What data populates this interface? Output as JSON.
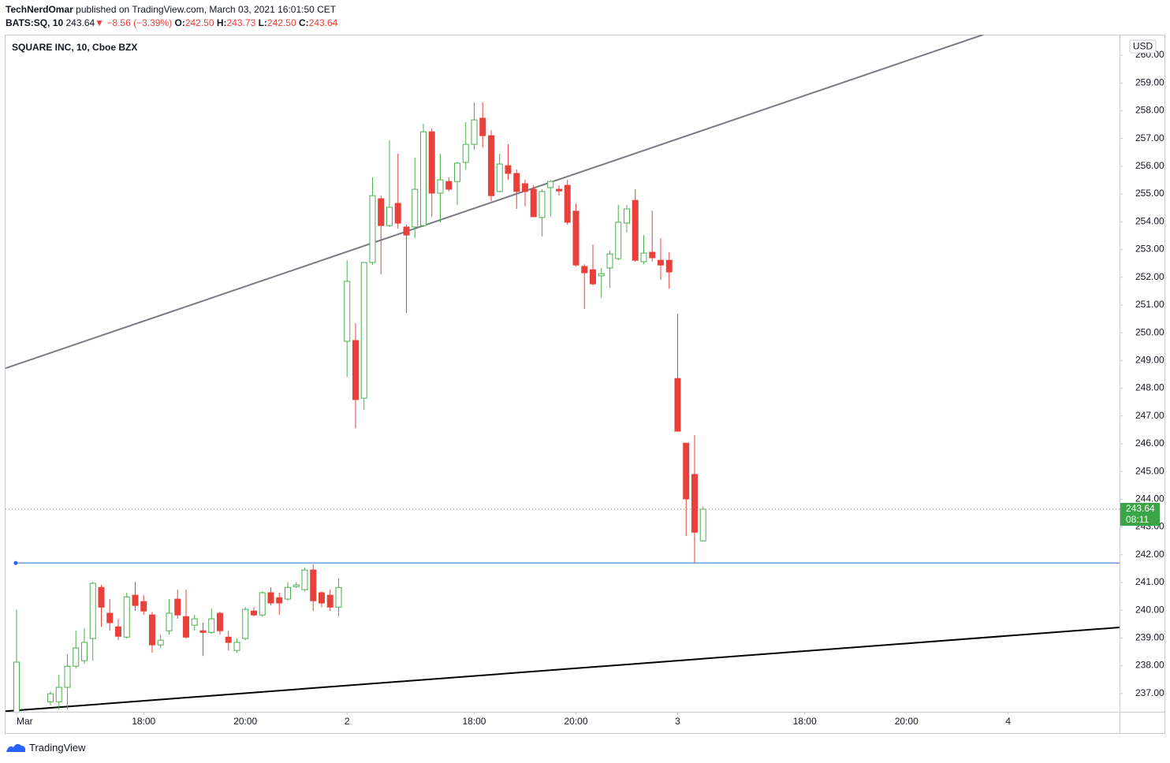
{
  "header": {
    "author": "TechNerdOmar",
    "published": "published on TradingView.com, March 03, 2021 16:01:50 CET",
    "symbol": "BATS:SQ, 10",
    "price": "243.64",
    "arrow": "▼",
    "change": "−8.56 (−3.39%)",
    "ohlc": [
      {
        "label": "O:",
        "value": "242.50"
      },
      {
        "label": "H:",
        "value": "243.73"
      },
      {
        "label": "L:",
        "value": "242.50"
      },
      {
        "label": "C:",
        "value": "243.64"
      }
    ]
  },
  "footer": "TradingView",
  "chart_data": {
    "type": "candlestick",
    "title": "SQUARE INC, 10, Cboe BZX",
    "currency": "USD",
    "countdown": "08:11",
    "up_color": "#4caf50",
    "down_color": "#e8413b",
    "last_price_color": "#3aa544",
    "x": [
      0,
      1,
      2,
      3,
      4,
      5,
      6,
      7,
      8,
      9,
      10,
      11,
      12,
      13,
      14,
      15,
      16,
      17,
      18,
      19,
      20,
      21,
      22,
      23,
      24,
      25,
      26,
      27,
      28,
      29,
      30,
      31,
      32,
      33,
      34,
      35,
      36,
      37,
      38,
      39,
      40,
      41,
      42,
      43,
      44,
      45,
      46,
      47,
      48,
      49,
      50,
      51,
      52,
      53,
      54,
      55,
      56,
      57,
      58,
      59,
      60,
      61,
      62,
      63,
      64,
      65,
      66,
      67,
      68,
      69,
      70,
      71,
      72,
      73,
      74,
      75,
      76,
      77,
      78,
      79,
      80,
      81
    ],
    "open": [
      236.2,
      236.1,
      235.9,
      236.1,
      236.7,
      236.7,
      237.22,
      237.98,
      238.18,
      238.98,
      240.82,
      239.89,
      239.4,
      239.03,
      240.54,
      240.31,
      239.83,
      238.75,
      239.26,
      240.4,
      239.77,
      239.46,
      239.26,
      239.2,
      239.89,
      239.03,
      238.55,
      238.98,
      239.97,
      239.83,
      240.63,
      240.45,
      240.4,
      240.85,
      240.74,
      241.45,
      240.63,
      240.54,
      240.11,
      249.69,
      249.72,
      247.64,
      252.53,
      254.83,
      253.86,
      254.66,
      253.81,
      253.81,
      253.86,
      257.24,
      255.03,
      255.45,
      255.45,
      256.14,
      256.79,
      257.73,
      257.1,
      255.09,
      256.02,
      255.74,
      255.37,
      255.17,
      254.15,
      255.23,
      255.17,
      255.31,
      254.38,
      252.39,
      252.27,
      252.05,
      252.33,
      252.67,
      253.95,
      254.77,
      252.56,
      252.9,
      252.61,
      252.61,
      248.35,
      246.02,
      244.89,
      242.5
    ],
    "high": [
      240.03,
      236.3,
      236.2,
      236.3,
      237.07,
      237.67,
      238.41,
      239.26,
      239.35,
      241.02,
      240.91,
      240.4,
      239.69,
      240.63,
      241.02,
      240.54,
      239.94,
      239.12,
      240.4,
      240.74,
      240.74,
      239.83,
      239.55,
      240.06,
      239.94,
      239.26,
      238.98,
      240.11,
      240.11,
      240.68,
      240.82,
      240.63,
      241.02,
      241.02,
      241.53,
      241.65,
      240.68,
      240.74,
      241.16,
      252.61,
      250.34,
      252.53,
      255.6,
      254.94,
      256.93,
      256.45,
      253.89,
      256.31,
      257.53,
      257.36,
      256.45,
      255.6,
      256.16,
      257.59,
      258.3,
      258.3,
      257.3,
      256.45,
      256.79,
      255.88,
      255.51,
      255.31,
      255.17,
      255.51,
      255.31,
      255.51,
      254.66,
      252.47,
      253.18,
      252.33,
      252.95,
      254.6,
      254.6,
      255.17,
      253.52,
      254.4,
      253.41,
      252.9,
      250.68,
      246.02,
      246.31,
      243.73
    ],
    "low": [
      236.1,
      235.8,
      235.6,
      235.9,
      236.56,
      236.42,
      236.42,
      237.9,
      238.07,
      238.18,
      239.4,
      239.26,
      238.92,
      238.98,
      239.97,
      239.83,
      238.47,
      238.64,
      239.12,
      239.69,
      238.98,
      239.26,
      238.35,
      239.15,
      239.12,
      238.55,
      238.47,
      238.92,
      239.77,
      239.77,
      240.17,
      239.83,
      240.34,
      240.8,
      240.68,
      239.97,
      240.11,
      239.97,
      239.77,
      248.41,
      246.56,
      247.22,
      252.45,
      252.1,
      253.81,
      253.75,
      250.71,
      253.41,
      253.81,
      254.18,
      253.98,
      255.09,
      254.6,
      255.88,
      256.59,
      256.68,
      254.74,
      255.05,
      255.51,
      254.46,
      254.55,
      254.18,
      253.47,
      254.18,
      254.94,
      253.89,
      252.39,
      250.85,
      251.7,
      251.25,
      251.62,
      252.61,
      253.61,
      252.56,
      252.47,
      252.56,
      251.9,
      251.59,
      246.45,
      242.67,
      241.7,
      242.5
    ],
    "close": [
      238.13,
      235.9,
      236.1,
      236.2,
      236.99,
      237.22,
      237.98,
      238.64,
      238.84,
      240.97,
      240.11,
      239.55,
      239.06,
      240.48,
      240.17,
      239.97,
      238.75,
      238.92,
      239.89,
      239.83,
      239.03,
      239.69,
      239.2,
      239.69,
      239.26,
      238.84,
      238.84,
      240.03,
      239.83,
      240.63,
      240.26,
      240.26,
      240.82,
      240.91,
      241.45,
      240.34,
      240.26,
      240.11,
      240.82,
      251.85,
      247.59,
      252.53,
      254.94,
      253.86,
      254.52,
      253.95,
      253.52,
      255.17,
      257.24,
      255.03,
      255.51,
      255.17,
      256.11,
      256.79,
      257.67,
      257.1,
      254.94,
      256.08,
      255.74,
      255.09,
      255.09,
      254.18,
      255.09,
      255.45,
      255.11,
      253.98,
      252.44,
      252.16,
      251.76,
      252.13,
      252.84,
      253.98,
      254.46,
      252.61,
      252.87,
      252.7,
      252.44,
      252.19,
      246.45,
      244.01,
      242.81,
      243.64
    ],
    "xlim": [
      -1.3,
      130.14
    ],
    "ylim": [
      236.34,
      260.74
    ],
    "xticks": [
      {
        "value": 0,
        "label": "Mar"
      },
      {
        "value": 15,
        "label": "18:00"
      },
      {
        "value": 27,
        "label": "20:00"
      },
      {
        "value": 39,
        "label": "2"
      },
      {
        "value": 54,
        "label": "18:00"
      },
      {
        "value": 66,
        "label": "20:00"
      },
      {
        "value": 78,
        "label": "3"
      },
      {
        "value": 93,
        "label": "18:00"
      },
      {
        "value": 105,
        "label": "20:00"
      },
      {
        "value": 117,
        "label": "4"
      }
    ],
    "yticks": [
      {
        "value": 237,
        "label": "237.00"
      },
      {
        "value": 238,
        "label": "238.00"
      },
      {
        "value": 239,
        "label": "239.00"
      },
      {
        "value": 240,
        "label": "240.00"
      },
      {
        "value": 241,
        "label": "241.00"
      },
      {
        "value": 242,
        "label": "242.00"
      },
      {
        "value": 243,
        "label": "243.00"
      },
      {
        "value": 244,
        "label": "244.00"
      },
      {
        "value": 245,
        "label": "245.00"
      },
      {
        "value": 246,
        "label": "246.00"
      },
      {
        "value": 247,
        "label": "247.00"
      },
      {
        "value": 248,
        "label": "248.00"
      },
      {
        "value": 249,
        "label": "249.00"
      },
      {
        "value": 250,
        "label": "250.00"
      },
      {
        "value": 251,
        "label": "251.00"
      },
      {
        "value": 252,
        "label": "252.00"
      },
      {
        "value": 253,
        "label": "253.00"
      },
      {
        "value": 254,
        "label": "254.00"
      },
      {
        "value": 255,
        "label": "255.00"
      },
      {
        "value": 256,
        "label": "256.00"
      },
      {
        "value": 257,
        "label": "257.00"
      },
      {
        "value": 258,
        "label": "258.00"
      },
      {
        "value": 259,
        "label": "259.00"
      },
      {
        "value": 260,
        "label": "260.00"
      }
    ],
    "lines": [
      {
        "x": [
          -1.3,
          114.05
        ],
        "y": [
          248.72,
          260.74
        ],
        "color": "#787b86",
        "width": 2
      },
      {
        "x": [
          -1.3,
          130.14
        ],
        "y": [
          236.36,
          239.38
        ],
        "color": "#000000",
        "width": 2
      },
      {
        "x": [
          -0.1,
          130.14
        ],
        "y": [
          241.7,
          241.7
        ],
        "color": "#6c9be0",
        "width": 1.5,
        "start_dot": true
      }
    ]
  }
}
